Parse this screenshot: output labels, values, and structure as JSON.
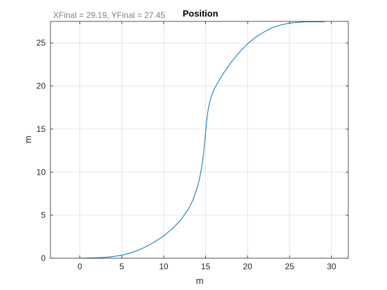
{
  "annotation": "XFinal = 29.19, YFinal = 27.45",
  "chart_data": {
    "type": "line",
    "title": "Position",
    "xlabel": "m",
    "ylabel": "m",
    "xlim": [
      -3.5,
      32
    ],
    "ylim": [
      0,
      27.5
    ],
    "xticks": [
      0,
      5,
      10,
      15,
      20,
      25,
      30
    ],
    "yticks": [
      0,
      5,
      10,
      15,
      20,
      25
    ],
    "grid": true,
    "series": [
      {
        "color": "#0072bd",
        "x": [
          0,
          1,
          2,
          3,
          4,
          5,
          6,
          7,
          8,
          9,
          10,
          11,
          12,
          13,
          13.5,
          14,
          14.3,
          14.6,
          14.8,
          14.9,
          15.0,
          15.1,
          15.3,
          15.6,
          16,
          16.5,
          17,
          18,
          19,
          20,
          21,
          22,
          23,
          24,
          25,
          26,
          27,
          28,
          29.19
        ],
        "y": [
          0.0,
          0.02,
          0.05,
          0.1,
          0.2,
          0.35,
          0.6,
          0.95,
          1.4,
          1.95,
          2.6,
          3.4,
          4.4,
          5.8,
          6.8,
          8.2,
          9.4,
          11.0,
          12.6,
          13.6,
          14.7,
          15.8,
          17.3,
          18.6,
          19.6,
          20.5,
          21.3,
          22.7,
          23.9,
          24.9,
          25.7,
          26.3,
          26.8,
          27.1,
          27.3,
          27.4,
          27.45,
          27.45,
          27.45
        ]
      }
    ]
  }
}
